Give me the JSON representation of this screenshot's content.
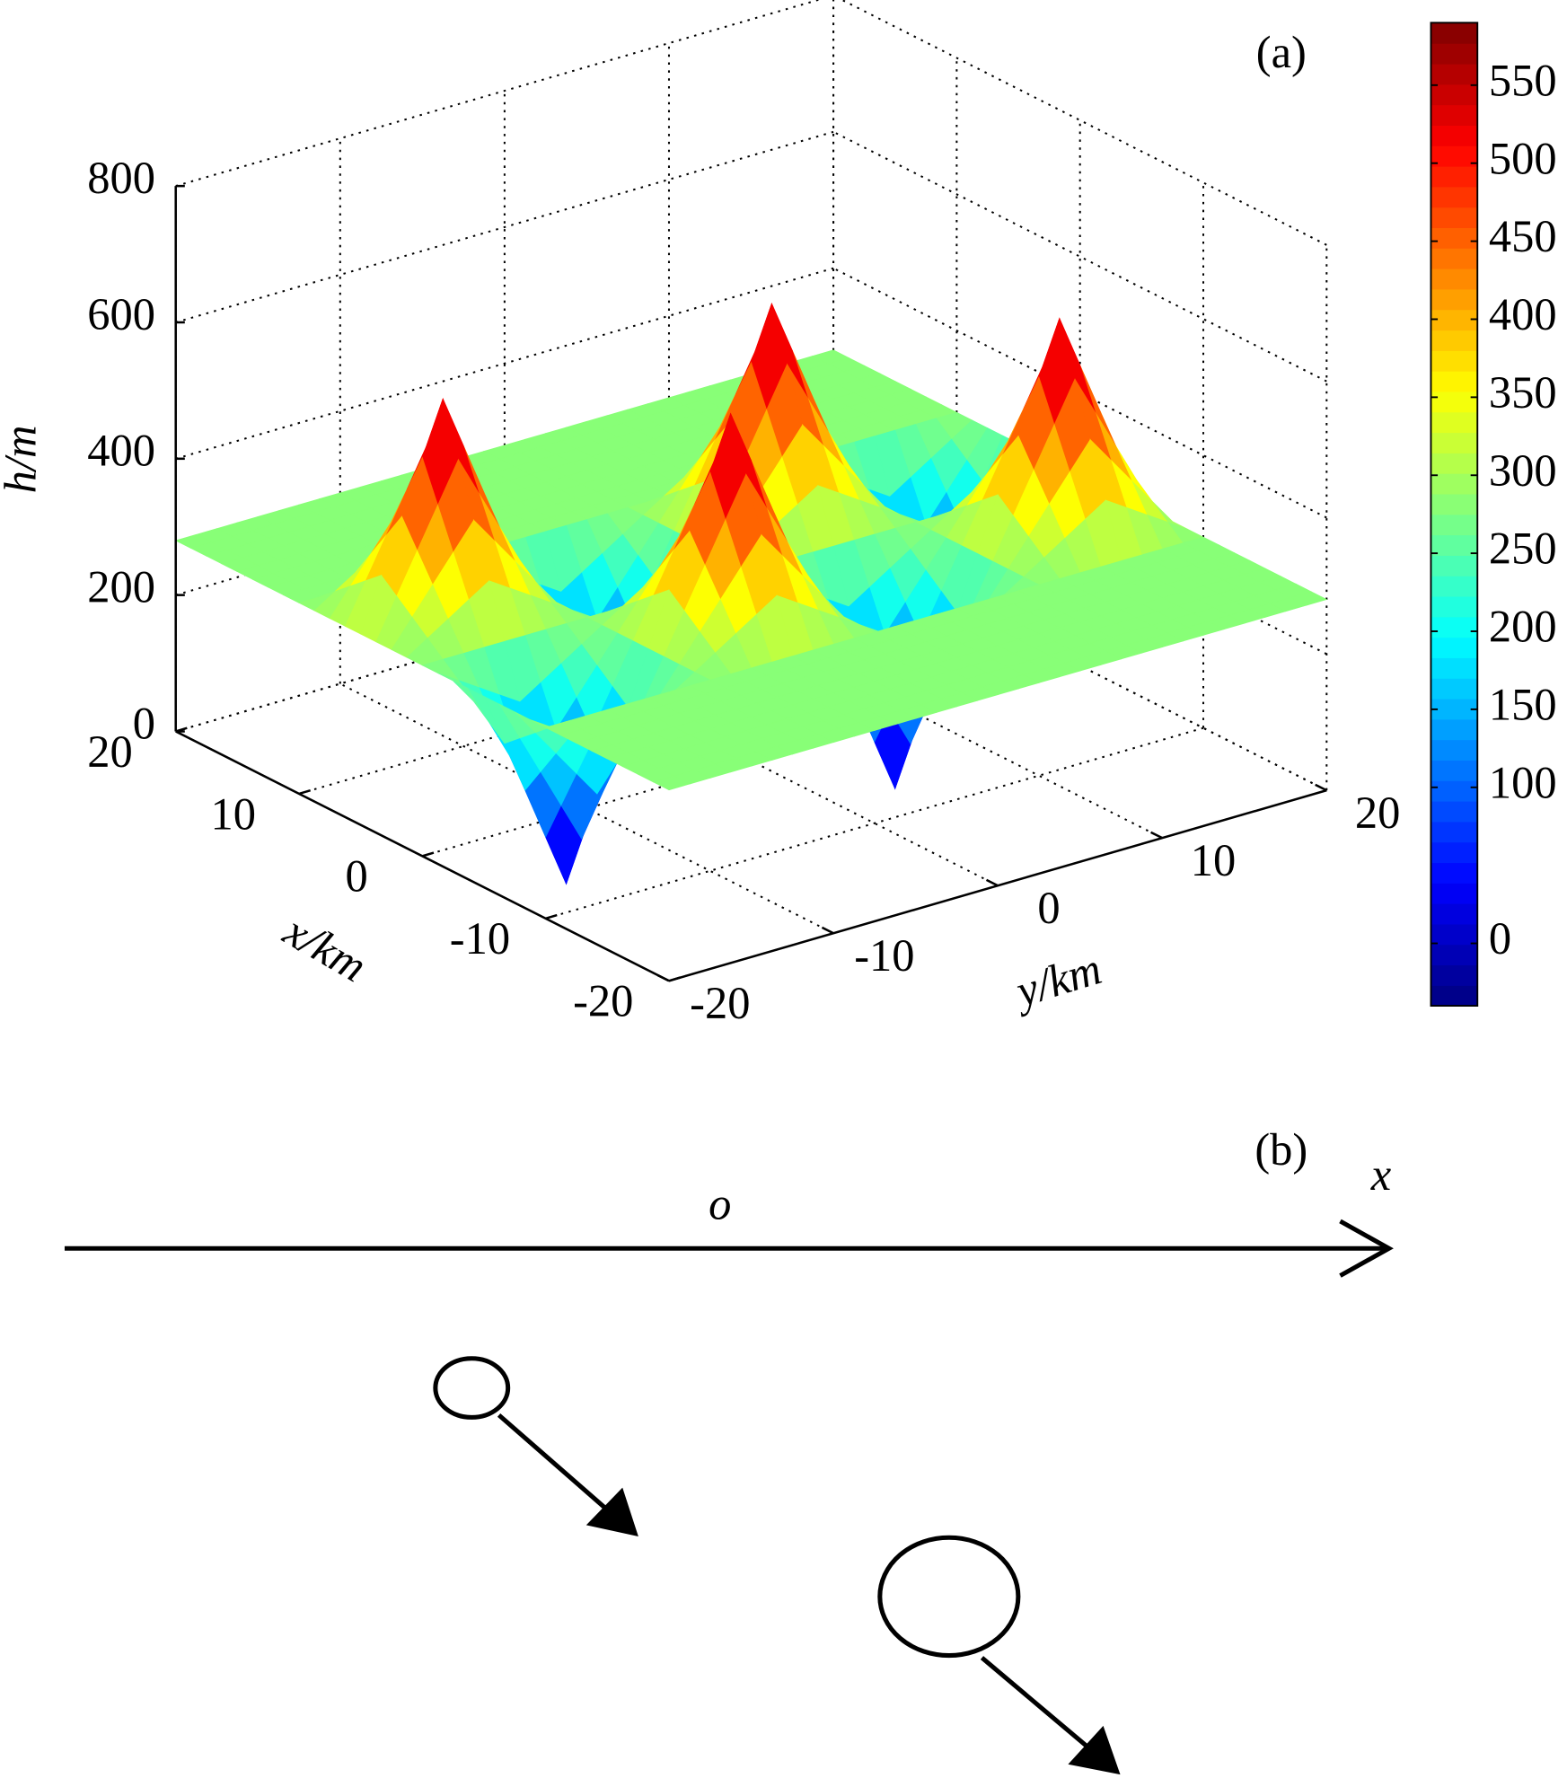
{
  "chart_data": {
    "type": "surface3d",
    "title": "(a)",
    "xlabel": "x/km",
    "ylabel": "y/km",
    "zlabel": "h/m",
    "x": [
      -20,
      -15,
      -10,
      -5,
      0,
      5,
      10,
      15,
      20
    ],
    "y": [
      -20,
      -15,
      -10,
      -5,
      0,
      5,
      10,
      15,
      20
    ],
    "z": [
      [
        280,
        280,
        280,
        280,
        280,
        280,
        280,
        280,
        280
      ],
      [
        280,
        280,
        280,
        280,
        280,
        280,
        280,
        280,
        280
      ],
      [
        280,
        280,
        280,
        280,
        280,
        280,
        280,
        280,
        280
      ],
      [
        280,
        -30,
        280,
        590,
        280,
        -30,
        280,
        590,
        280
      ],
      [
        280,
        280,
        280,
        280,
        280,
        280,
        280,
        280,
        280
      ],
      [
        280,
        590,
        280,
        -30,
        280,
        590,
        280,
        -30,
        280
      ],
      [
        280,
        280,
        280,
        280,
        280,
        280,
        280,
        280,
        280
      ],
      [
        280,
        280,
        280,
        280,
        280,
        280,
        280,
        280,
        280
      ],
      [
        280,
        280,
        280,
        280,
        280,
        280,
        280,
        280,
        280
      ]
    ],
    "xlim": [
      -20,
      20
    ],
    "xticks": [
      -20,
      -10,
      0,
      10,
      20
    ],
    "ylim": [
      -20,
      20
    ],
    "yticks": [
      -20,
      -10,
      0,
      10,
      20
    ],
    "zlim": [
      0,
      800
    ],
    "zticks": [
      0,
      200,
      400,
      600,
      800
    ],
    "colorbar": {
      "clim": [
        -40,
        590
      ],
      "ticks": [
        0,
        100,
        150,
        200,
        250,
        300,
        350,
        400,
        450,
        500,
        550
      ],
      "colormap": "jet"
    },
    "grid": true
  },
  "diagram": {
    "label": "(b)",
    "axis_label": "x",
    "origin_label": "o"
  }
}
